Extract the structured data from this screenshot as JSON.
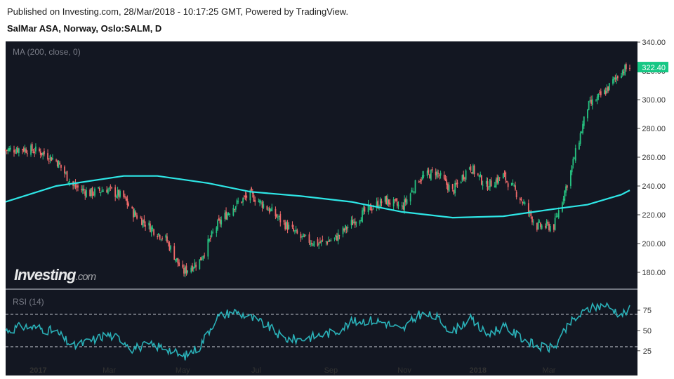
{
  "header": {
    "published": "Published on Investing.com, 28/Mar/2018 - 10:17:25 GMT, Powered by TradingView.",
    "symbol": "SalMar ASA, Norway, Oslo:SALM, D"
  },
  "watermark": "Investing.com",
  "colors": {
    "background": "#131722",
    "up": "#26c281",
    "down": "#ef6a6a",
    "ma": "#2ee6e6",
    "rsi": "#2ab1b8",
    "last_label": "#16c784"
  },
  "chart_data": [
    {
      "type": "candlestick",
      "indicator_label": "MA (200, close, 0)",
      "y_ticks": [
        "340.00",
        "320.00",
        "300.00",
        "280.00",
        "260.00",
        "240.00",
        "220.00",
        "200.00",
        "180.00"
      ],
      "ylim": [
        172,
        342
      ],
      "last_price": "322.40",
      "x_ticks": [
        "2017",
        "Mar",
        "May",
        "Jul",
        "Sep",
        "Nov",
        "2018",
        "Mar"
      ],
      "x_ticks_bold": [
        "2017",
        "2018"
      ],
      "close_series": [
        {
          "date": "2016-12-05",
          "close": 265
        },
        {
          "date": "2016-12-19",
          "close": 266
        },
        {
          "date": "2017-01-02",
          "close": 264
        },
        {
          "date": "2017-01-16",
          "close": 258
        },
        {
          "date": "2017-01-30",
          "close": 240
        },
        {
          "date": "2017-02-13",
          "close": 235
        },
        {
          "date": "2017-02-27",
          "close": 238
        },
        {
          "date": "2017-03-13",
          "close": 232
        },
        {
          "date": "2017-03-20",
          "close": 222
        },
        {
          "date": "2017-04-03",
          "close": 212
        },
        {
          "date": "2017-04-17",
          "close": 203
        },
        {
          "date": "2017-05-01",
          "close": 180
        },
        {
          "date": "2017-05-15",
          "close": 188
        },
        {
          "date": "2017-05-29",
          "close": 212
        },
        {
          "date": "2017-06-12",
          "close": 226
        },
        {
          "date": "2017-06-26",
          "close": 234
        },
        {
          "date": "2017-07-10",
          "close": 225
        },
        {
          "date": "2017-07-24",
          "close": 214
        },
        {
          "date": "2017-08-07",
          "close": 204
        },
        {
          "date": "2017-08-21",
          "close": 200
        },
        {
          "date": "2017-09-04",
          "close": 203
        },
        {
          "date": "2017-09-18",
          "close": 214
        },
        {
          "date": "2017-10-02",
          "close": 224
        },
        {
          "date": "2017-10-16",
          "close": 230
        },
        {
          "date": "2017-10-30",
          "close": 225
        },
        {
          "date": "2017-11-13",
          "close": 245
        },
        {
          "date": "2017-11-27",
          "close": 250
        },
        {
          "date": "2017-12-11",
          "close": 236
        },
        {
          "date": "2017-12-25",
          "close": 254
        },
        {
          "date": "2018-01-08",
          "close": 240
        },
        {
          "date": "2018-01-22",
          "close": 247
        },
        {
          "date": "2018-02-05",
          "close": 232
        },
        {
          "date": "2018-02-19",
          "close": 212
        },
        {
          "date": "2018-03-05",
          "close": 212
        },
        {
          "date": "2018-03-19",
          "close": 250
        },
        {
          "date": "2018-04-02",
          "close": 295
        },
        {
          "date": "2018-04-16",
          "close": 305
        },
        {
          "date": "2018-04-30",
          "close": 320
        },
        {
          "date": "2018-05-07",
          "close": 322.4
        }
      ],
      "ma_series": [
        {
          "date": "2016-12-05",
          "value": 229
        },
        {
          "date": "2017-01-16",
          "value": 240
        },
        {
          "date": "2017-03-13",
          "value": 247
        },
        {
          "date": "2017-04-10",
          "value": 247
        },
        {
          "date": "2017-05-22",
          "value": 242
        },
        {
          "date": "2017-06-26",
          "value": 236
        },
        {
          "date": "2017-08-07",
          "value": 233
        },
        {
          "date": "2017-09-18",
          "value": 229
        },
        {
          "date": "2017-10-30",
          "value": 222
        },
        {
          "date": "2017-12-11",
          "value": 218
        },
        {
          "date": "2018-01-22",
          "value": 219
        },
        {
          "date": "2018-03-05",
          "value": 224
        },
        {
          "date": "2018-04-02",
          "value": 227
        },
        {
          "date": "2018-04-30",
          "value": 234
        },
        {
          "date": "2018-05-07",
          "value": 237
        }
      ]
    },
    {
      "type": "line",
      "indicator_label": "RSI (14)",
      "y_ticks": [
        "75",
        "50",
        "25"
      ],
      "ylim": [
        10,
        95
      ],
      "bands": [
        70,
        30
      ],
      "series": [
        {
          "date": "2016-12-05",
          "value": 50
        },
        {
          "date": "2016-12-19",
          "value": 55
        },
        {
          "date": "2017-01-02",
          "value": 53
        },
        {
          "date": "2017-01-16",
          "value": 48
        },
        {
          "date": "2017-01-30",
          "value": 30
        },
        {
          "date": "2017-02-13",
          "value": 37
        },
        {
          "date": "2017-02-27",
          "value": 45
        },
        {
          "date": "2017-03-13",
          "value": 38
        },
        {
          "date": "2017-03-20",
          "value": 28
        },
        {
          "date": "2017-04-03",
          "value": 32
        },
        {
          "date": "2017-04-17",
          "value": 29
        },
        {
          "date": "2017-05-01",
          "value": 17
        },
        {
          "date": "2017-05-15",
          "value": 30
        },
        {
          "date": "2017-05-29",
          "value": 66
        },
        {
          "date": "2017-06-12",
          "value": 74
        },
        {
          "date": "2017-06-26",
          "value": 66
        },
        {
          "date": "2017-07-10",
          "value": 56
        },
        {
          "date": "2017-07-24",
          "value": 40
        },
        {
          "date": "2017-08-07",
          "value": 39
        },
        {
          "date": "2017-08-21",
          "value": 44
        },
        {
          "date": "2017-09-04",
          "value": 48
        },
        {
          "date": "2017-09-18",
          "value": 60
        },
        {
          "date": "2017-10-02",
          "value": 63
        },
        {
          "date": "2017-10-16",
          "value": 60
        },
        {
          "date": "2017-10-30",
          "value": 50
        },
        {
          "date": "2017-11-13",
          "value": 70
        },
        {
          "date": "2017-11-27",
          "value": 67
        },
        {
          "date": "2017-12-11",
          "value": 48
        },
        {
          "date": "2017-12-25",
          "value": 65
        },
        {
          "date": "2018-01-08",
          "value": 45
        },
        {
          "date": "2018-01-22",
          "value": 55
        },
        {
          "date": "2018-02-05",
          "value": 42
        },
        {
          "date": "2018-02-19",
          "value": 30
        },
        {
          "date": "2018-03-05",
          "value": 28
        },
        {
          "date": "2018-03-19",
          "value": 60
        },
        {
          "date": "2018-04-02",
          "value": 76
        },
        {
          "date": "2018-04-16",
          "value": 82
        },
        {
          "date": "2018-04-30",
          "value": 70
        },
        {
          "date": "2018-05-07",
          "value": 76
        }
      ]
    }
  ]
}
